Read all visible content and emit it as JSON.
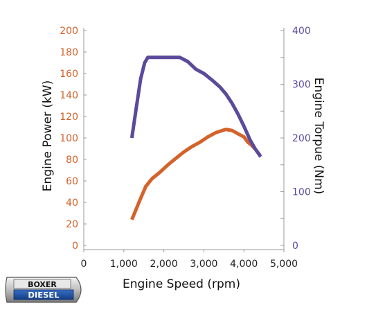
{
  "chart_data": {
    "type": "line",
    "title": "",
    "xlabel": "Engine Speed (rpm)",
    "ylabel_left": "Engine Power (kW)",
    "ylabel_right": "Engine Torpue (Nm)",
    "xlim": [
      0,
      5000
    ],
    "ylim_left": [
      0,
      200
    ],
    "ylim_right": [
      0,
      400
    ],
    "x_ticks": [
      0,
      1000,
      2000,
      3000,
      4000,
      5000
    ],
    "x_tick_labels": [
      "0",
      "1,000",
      "2,000",
      "3,000",
      "4,000",
      "5,000"
    ],
    "y_left_ticks": [
      0,
      20,
      40,
      60,
      80,
      100,
      120,
      140,
      160,
      180,
      200
    ],
    "y_right_ticks": [
      0,
      100,
      200,
      300,
      400
    ],
    "grid": false,
    "legend": "none",
    "colors": {
      "power": "#d4622a",
      "torque": "#5b4a9b"
    },
    "series": [
      {
        "axis": "left",
        "color": "#d4622a",
        "x": [
          1200,
          1400,
          1550,
          1700,
          1900,
          2100,
          2300,
          2500,
          2700,
          2900,
          3100,
          3300,
          3550,
          3700,
          3850,
          4000,
          4100,
          4200,
          4300,
          4400
        ],
        "y": [
          24,
          42,
          55,
          62,
          68,
          75,
          81,
          87,
          92,
          96,
          101,
          105,
          108,
          107,
          104,
          101,
          96,
          93,
          89,
          84
        ]
      },
      {
        "axis": "right",
        "color": "#5b4a9b",
        "x": [
          1200,
          1300,
          1420,
          1520,
          1600,
          1800,
          2000,
          2200,
          2400,
          2600,
          2800,
          3000,
          3200,
          3400,
          3550,
          3700,
          3850,
          4000,
          4150,
          4280,
          4420
        ],
        "y": [
          200,
          250,
          310,
          340,
          350,
          350,
          350,
          350,
          350,
          342,
          328,
          320,
          308,
          295,
          282,
          265,
          245,
          222,
          197,
          180,
          165
        ]
      }
    ]
  },
  "logo": {
    "line1": "BOXER",
    "line2": "DIESEL"
  }
}
